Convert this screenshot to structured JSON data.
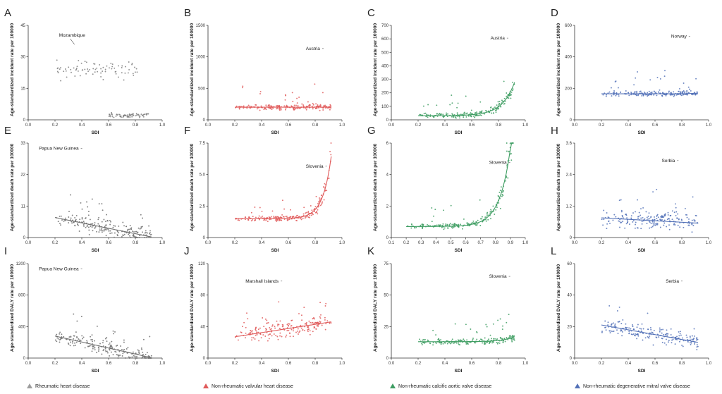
{
  "chart_data": [
    {
      "id": "A",
      "type": "scatter",
      "color": "#7f7f7f",
      "ylabel": "Age-standardized incident rate per 100000",
      "xlabel": "SDI",
      "xlim": [
        0,
        1
      ],
      "ylim": [
        0,
        45
      ],
      "yticks": [
        "0",
        "15",
        "30",
        "45"
      ],
      "xticks": [
        "0.0",
        "0.2",
        "0.4",
        "0.6",
        "0.8",
        "1.0"
      ],
      "annotation": "Mozambique",
      "fit": "none",
      "seed": 11,
      "clusters": [
        {
          "x0": 0.2,
          "x1": 0.82,
          "yc": 24,
          "spread": 6,
          "n": 80
        },
        {
          "x0": 0.6,
          "x1": 0.9,
          "yc": 2,
          "spread": 1.5,
          "n": 70
        }
      ]
    },
    {
      "id": "B",
      "type": "scatter",
      "color": "#e05a5a",
      "ylabel": "Age-standardized incident rate per 100000",
      "xlabel": "SDI",
      "xlim": [
        0,
        1
      ],
      "ylim": [
        0,
        1500
      ],
      "yticks": [
        "0",
        "500",
        "1000",
        "1500"
      ],
      "xticks": [
        "0.0",
        "0.2",
        "0.4",
        "0.6",
        "0.8",
        "1.0"
      ],
      "annotation": "Austria",
      "fit": {
        "kind": "exp",
        "x0": 0.2,
        "x1": 0.92,
        "a": 200,
        "b": 8e-05,
        "k": 11.5
      },
      "seed": 22
    },
    {
      "id": "C",
      "type": "scatter",
      "color": "#3f9e63",
      "ylabel": "Age-standardized incident rate per 100000",
      "xlabel": "SDI",
      "xlim": [
        0,
        1
      ],
      "ylim": [
        0,
        700
      ],
      "yticks": [
        "0",
        "100",
        "200",
        "300",
        "400",
        "500",
        "600",
        "700"
      ],
      "xticks": [
        "0.0",
        "0.2",
        "0.4",
        "0.6",
        "0.8",
        "1.0"
      ],
      "annotation": "Austria",
      "fit": {
        "kind": "exp",
        "x0": 0.2,
        "x1": 0.92,
        "a": 30,
        "b": 0.012,
        "k": 10.8
      },
      "seed": 33
    },
    {
      "id": "D",
      "type": "scatter",
      "color": "#5472b8",
      "ylabel": "Age-standardized incident rate per 100000",
      "xlabel": "SDI",
      "xlim": [
        0,
        1
      ],
      "ylim": [
        0,
        600
      ],
      "yticks": [
        "0",
        "200",
        "400",
        "600"
      ],
      "xticks": [
        "0.0",
        "0.2",
        "0.4",
        "0.6",
        "0.8",
        "1.0"
      ],
      "annotation": "Norway",
      "fit": {
        "kind": "exp",
        "x0": 0.2,
        "x1": 0.92,
        "a": 165,
        "b": 8e-05,
        "k": 11.8
      },
      "seed": 44
    },
    {
      "id": "E",
      "type": "scatter",
      "color": "#6f6f6f",
      "ylabel": "Age-standardized death rate per 100000",
      "xlabel": "SDI",
      "xlim": [
        0,
        1
      ],
      "ylim": [
        0,
        33
      ],
      "yticks": [
        "0",
        "11",
        "22",
        "33"
      ],
      "xticks": [
        "0.0",
        "0.2",
        "0.4",
        "0.6",
        "0.8",
        "1.0"
      ],
      "annotation": "Papua New Guinea",
      "fit": {
        "kind": "lin",
        "x0": 0.2,
        "x1": 0.92,
        "y0": 7,
        "y1": 0.2
      },
      "seed": 55
    },
    {
      "id": "F",
      "type": "scatter",
      "color": "#e05a5a",
      "ylabel": "Age-standardized death rate per 100000",
      "xlabel": "SDI",
      "xlim": [
        0,
        1
      ],
      "ylim": [
        0,
        7.5
      ],
      "yticks": [
        "0",
        "2.5",
        "5.0",
        "7.5"
      ],
      "xticks": [
        "0.0",
        "0.2",
        "0.4",
        "0.6",
        "0.8",
        "1.0"
      ],
      "annotation": "Slovenia",
      "fit": {
        "kind": "exp",
        "x0": 0.2,
        "x1": 0.92,
        "a": 1.5,
        "b": 2e-06,
        "k": 16
      },
      "seed": 66
    },
    {
      "id": "G",
      "type": "scatter",
      "color": "#3f9e63",
      "ylabel": "Age-standardized death rate per 100000",
      "xlabel": "SDI",
      "xlim": [
        0.1,
        1
      ],
      "ylim": [
        0,
        6
      ],
      "yticks": [
        "0",
        "2",
        "4",
        "6"
      ],
      "xticks": [
        "0.1",
        "0.2",
        "0.3",
        "0.4",
        "0.5",
        "0.6",
        "0.7",
        "0.8",
        "0.9",
        "1.0"
      ],
      "annotation": "Slovenia",
      "fit": {
        "kind": "exp",
        "x0": 0.2,
        "x1": 0.92,
        "a": 0.7,
        "b": 2e-05,
        "k": 13.8
      },
      "seed": 77
    },
    {
      "id": "H",
      "type": "scatter",
      "color": "#5472b8",
      "ylabel": "Age-standardized death rate per 100000",
      "xlabel": "SDI",
      "xlim": [
        0,
        1
      ],
      "ylim": [
        0,
        3.6
      ],
      "yticks": [
        "0",
        "1.2",
        "2.4",
        "3.6"
      ],
      "xticks": [
        "0.0",
        "0.2",
        "0.4",
        "0.6",
        "0.8",
        "1.0"
      ],
      "annotation": "Serbia",
      "fit": {
        "kind": "lin",
        "x0": 0.2,
        "x1": 0.92,
        "y0": 0.75,
        "y1": 0.55
      },
      "seed": 88
    },
    {
      "id": "I",
      "type": "scatter",
      "color": "#6f6f6f",
      "ylabel": "Age-standardized DALY rate per 100000",
      "xlabel": "SDI",
      "xlim": [
        0,
        1
      ],
      "ylim": [
        0,
        1200
      ],
      "yticks": [
        "0",
        "400",
        "800",
        "1200"
      ],
      "xticks": [
        "0.0",
        "0.2",
        "0.4",
        "0.6",
        "0.8",
        "1.0"
      ],
      "annotation": "Papua New Guinea",
      "fit": {
        "kind": "lin",
        "x0": 0.2,
        "x1": 0.92,
        "y0": 280,
        "y1": 5
      },
      "seed": 99
    },
    {
      "id": "J",
      "type": "scatter",
      "color": "#e05a5a",
      "ylabel": "Age-standardized DALY rate per 100000",
      "xlabel": "SDI",
      "xlim": [
        0,
        1
      ],
      "ylim": [
        0,
        120
      ],
      "yticks": [
        "0",
        "40",
        "80",
        "120"
      ],
      "xticks": [
        "0.0",
        "0.2",
        "0.4",
        "0.6",
        "0.8",
        "1.0"
      ],
      "annotation": "Marshall Islands",
      "fit": {
        "kind": "lin",
        "x0": 0.2,
        "x1": 0.92,
        "y0": 27,
        "y1": 46
      },
      "seed": 111
    },
    {
      "id": "K",
      "type": "scatter",
      "color": "#3f9e63",
      "ylabel": "Age-standardized DALY rate per 100000",
      "xlabel": "SDI",
      "xlim": [
        0,
        1
      ],
      "ylim": [
        0,
        75
      ],
      "yticks": [
        "0",
        "25",
        "50",
        "75"
      ],
      "xticks": [
        "0.0",
        "0.2",
        "0.4",
        "0.6",
        "0.8",
        "1.0"
      ],
      "annotation": "Slovenia",
      "fit": {
        "kind": "exp",
        "x0": 0.2,
        "x1": 0.92,
        "a": 13,
        "b": 0.0001,
        "k": 11.5
      },
      "seed": 122
    },
    {
      "id": "L",
      "type": "scatter",
      "color": "#5472b8",
      "ylabel": "Age-standardized DALY rate per 100000",
      "xlabel": "SDI",
      "xlim": [
        0,
        1
      ],
      "ylim": [
        0,
        60
      ],
      "yticks": [
        "0",
        "20",
        "40",
        "60"
      ],
      "xticks": [
        "0.0",
        "0.2",
        "0.4",
        "0.6",
        "0.8",
        "1.0"
      ],
      "annotation": "Serbia",
      "fit": {
        "kind": "lin",
        "x0": 0.2,
        "x1": 0.92,
        "y0": 21,
        "y1": 10
      },
      "seed": 133
    }
  ],
  "legend": [
    {
      "label": "Rheumatic heart disease",
      "color": "#9e9e9e"
    },
    {
      "label": "Non-rheumatic valvular heart disease",
      "color": "#e05a5a"
    },
    {
      "label": "Non-rheumatic calcific aortic valve disease",
      "color": "#3f9e63"
    },
    {
      "label": "Non-rheumatic degenerative mitral valve disease",
      "color": "#5472b8"
    }
  ]
}
